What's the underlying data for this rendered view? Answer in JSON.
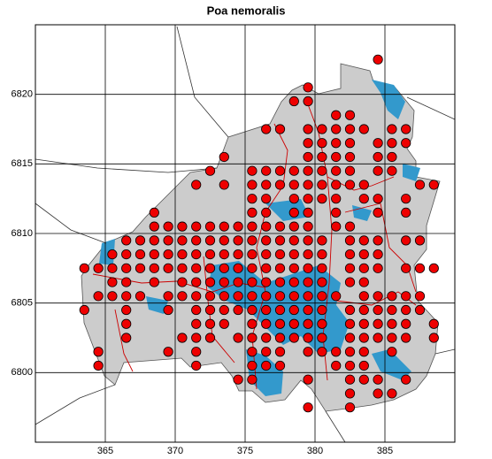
{
  "chart_data": {
    "type": "scatter",
    "title": "Poa nemoralis",
    "color": "#ee0000",
    "grid": true,
    "xlim": [
      360,
      390
    ],
    "ylim": [
      6795,
      6825
    ],
    "xticks": [
      365,
      370,
      375,
      380,
      385
    ],
    "yticks": [
      6800,
      6805,
      6810,
      6815,
      6820
    ],
    "x": [
      384.5,
      379.5,
      378.5,
      379.5,
      381.5,
      382.5,
      376.5,
      377.5,
      379.5,
      380.5,
      381.5,
      382.5,
      383.5,
      385.5,
      386.5,
      379.5,
      380.5,
      381.5,
      382.5,
      384.5,
      385.5,
      386.5,
      373.5,
      379.5,
      380.5,
      381.5,
      382.5,
      384.5,
      385.5,
      372.5,
      375.5,
      376.5,
      377.5,
      378.5,
      379.5,
      380.5,
      381.5,
      382.5,
      384.5,
      385.5,
      371.5,
      373.5,
      375.5,
      376.5,
      377.5,
      378.5,
      379.5,
      380.5,
      381.5,
      382.5,
      383.5,
      387.5,
      388.5,
      375.5,
      376.5,
      378.5,
      379.5,
      380.5,
      381.5,
      383.5,
      384.5,
      386.5,
      368.5,
      375.5,
      376.5,
      378.5,
      379.5,
      381.5,
      384.5,
      386.5,
      368.5,
      369.5,
      370.5,
      371.5,
      372.5,
      373.5,
      374.5,
      375.5,
      376.5,
      377.5,
      378.5,
      379.5,
      381.5,
      382.5,
      366.5,
      367.5,
      368.5,
      369.5,
      370.5,
      371.5,
      372.5,
      373.5,
      374.5,
      375.5,
      376.5,
      377.5,
      378.5,
      379.5,
      380.5,
      382.5,
      383.5,
      384.5,
      386.5,
      387.5,
      365.5,
      366.5,
      367.5,
      368.5,
      369.5,
      370.5,
      371.5,
      372.5,
      373.5,
      374.5,
      375.5,
      376.5,
      377.5,
      378.5,
      379.5,
      380.5,
      382.5,
      383.5,
      384.5,
      363.5,
      364.5,
      365.5,
      366.5,
      367.5,
      368.5,
      369.5,
      370.5,
      371.5,
      372.5,
      373.5,
      374.5,
      375.5,
      376.5,
      377.5,
      378.5,
      379.5,
      380.5,
      382.5,
      383.5,
      384.5,
      386.5,
      387.5,
      388.5,
      365.5,
      366.5,
      368.5,
      370.5,
      371.5,
      372.5,
      373.5,
      374.5,
      375.5,
      376.5,
      377.5,
      378.5,
      379.5,
      380.5,
      382.5,
      383.5,
      364.5,
      365.5,
      366.5,
      367.5,
      369.5,
      370.5,
      371.5,
      372.5,
      373.5,
      374.5,
      375.5,
      376.5,
      377.5,
      378.5,
      379.5,
      380.5,
      381.5,
      383.5,
      384.5,
      385.5,
      386.5,
      387.5,
      363.5,
      366.5,
      369.5,
      371.5,
      372.5,
      373.5,
      374.5,
      375.5,
      376.5,
      377.5,
      378.5,
      379.5,
      380.5,
      382.5,
      383.5,
      384.5,
      385.5,
      386.5,
      387.5,
      366.5,
      371.5,
      372.5,
      373.5,
      375.5,
      376.5,
      377.5,
      378.5,
      379.5,
      380.5,
      382.5,
      383.5,
      384.5,
      385.5,
      386.5,
      388.5,
      366.5,
      370.5,
      371.5,
      372.5,
      374.5,
      375.5,
      376.5,
      377.5,
      378.5,
      379.5,
      380.5,
      382.5,
      383.5,
      384.5,
      385.5,
      386.5,
      388.5,
      364.5,
      369.5,
      371.5,
      375.5,
      376.5,
      377.5,
      379.5,
      380.5,
      381.5,
      382.5,
      383.5,
      385.5,
      364.5,
      371.5,
      375.5,
      376.5,
      377.5,
      381.5,
      382.5,
      383.5,
      374.5,
      375.5,
      379.5,
      382.5,
      383.5,
      384.5,
      386.5,
      382.5,
      384.5,
      385.5,
      379.5,
      382.5
    ],
    "values": [
      6822.5,
      6820.5,
      6819.5,
      6819.5,
      6818.5,
      6818.5,
      6817.5,
      6817.5,
      6817.5,
      6817.5,
      6817.5,
      6817.5,
      6817.5,
      6817.5,
      6817.5,
      6816.5,
      6816.5,
      6816.5,
      6816.5,
      6816.5,
      6816.5,
      6816.5,
      6815.5,
      6815.5,
      6815.5,
      6815.5,
      6815.5,
      6815.5,
      6815.5,
      6814.5,
      6814.5,
      6814.5,
      6814.5,
      6814.5,
      6814.5,
      6814.5,
      6814.5,
      6814.5,
      6814.5,
      6814.5,
      6813.5,
      6813.5,
      6813.5,
      6813.5,
      6813.5,
      6813.5,
      6813.5,
      6813.5,
      6813.5,
      6813.5,
      6813.5,
      6813.5,
      6813.5,
      6812.5,
      6812.5,
      6812.5,
      6812.5,
      6812.5,
      6812.5,
      6812.5,
      6812.5,
      6812.5,
      6811.5,
      6811.5,
      6811.5,
      6811.5,
      6811.5,
      6811.5,
      6811.5,
      6811.5,
      6810.5,
      6810.5,
      6810.5,
      6810.5,
      6810.5,
      6810.5,
      6810.5,
      6810.5,
      6810.5,
      6810.5,
      6810.5,
      6810.5,
      6810.5,
      6810.5,
      6809.5,
      6809.5,
      6809.5,
      6809.5,
      6809.5,
      6809.5,
      6809.5,
      6809.5,
      6809.5,
      6809.5,
      6809.5,
      6809.5,
      6809.5,
      6809.5,
      6809.5,
      6809.5,
      6809.5,
      6809.5,
      6809.5,
      6809.5,
      6808.5,
      6808.5,
      6808.5,
      6808.5,
      6808.5,
      6808.5,
      6808.5,
      6808.5,
      6808.5,
      6808.5,
      6808.5,
      6808.5,
      6808.5,
      6808.5,
      6808.5,
      6808.5,
      6808.5,
      6808.5,
      6808.5,
      6807.5,
      6807.5,
      6807.5,
      6807.5,
      6807.5,
      6807.5,
      6807.5,
      6807.5,
      6807.5,
      6807.5,
      6807.5,
      6807.5,
      6807.5,
      6807.5,
      6807.5,
      6807.5,
      6807.5,
      6807.5,
      6807.5,
      6807.5,
      6807.5,
      6807.5,
      6807.5,
      6807.5,
      6806.5,
      6806.5,
      6806.5,
      6806.5,
      6806.5,
      6806.5,
      6806.5,
      6806.5,
      6806.5,
      6806.5,
      6806.5,
      6806.5,
      6806.5,
      6806.5,
      6806.5,
      6806.5,
      6805.5,
      6805.5,
      6805.5,
      6805.5,
      6805.5,
      6805.5,
      6805.5,
      6805.5,
      6805.5,
      6805.5,
      6805.5,
      6805.5,
      6805.5,
      6805.5,
      6805.5,
      6805.5,
      6805.5,
      6805.5,
      6805.5,
      6805.5,
      6805.5,
      6805.5,
      6804.5,
      6804.5,
      6804.5,
      6804.5,
      6804.5,
      6804.5,
      6804.5,
      6804.5,
      6804.5,
      6804.5,
      6804.5,
      6804.5,
      6804.5,
      6804.5,
      6804.5,
      6804.5,
      6804.5,
      6804.5,
      6804.5,
      6803.5,
      6803.5,
      6803.5,
      6803.5,
      6803.5,
      6803.5,
      6803.5,
      6803.5,
      6803.5,
      6803.5,
      6803.5,
      6803.5,
      6803.5,
      6803.5,
      6803.5,
      6803.5,
      6802.5,
      6802.5,
      6802.5,
      6802.5,
      6802.5,
      6802.5,
      6802.5,
      6802.5,
      6802.5,
      6802.5,
      6802.5,
      6802.5,
      6802.5,
      6802.5,
      6802.5,
      6802.5,
      6802.5,
      6801.5,
      6801.5,
      6801.5,
      6801.5,
      6801.5,
      6801.5,
      6801.5,
      6801.5,
      6801.5,
      6801.5,
      6801.5,
      6801.5,
      6800.5,
      6800.5,
      6800.5,
      6800.5,
      6800.5,
      6800.5,
      6800.5,
      6800.5,
      6799.5,
      6799.5,
      6799.5,
      6799.5,
      6799.5,
      6799.5,
      6799.5,
      6798.5,
      6798.5,
      6798.5,
      6797.5,
      6797.5
    ]
  }
}
